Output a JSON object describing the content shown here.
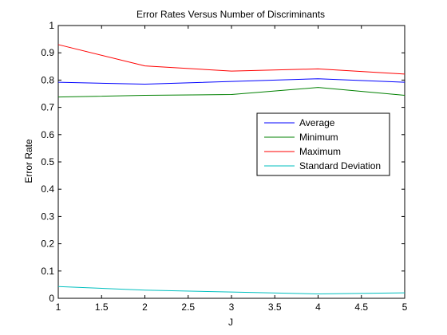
{
  "chart_data": {
    "type": "line",
    "title": "Error Rates Versus Number of Discriminants",
    "xlabel": "J",
    "ylabel": "Error Rate",
    "xlim": [
      1,
      5
    ],
    "ylim": [
      0,
      1
    ],
    "xticks": [
      1,
      1.5,
      2,
      2.5,
      3,
      3.5,
      4,
      4.5,
      5
    ],
    "xtick_labels": [
      "1",
      "1.5",
      "2",
      "2.5",
      "3",
      "3.5",
      "4",
      "4.5",
      "5"
    ],
    "yticks": [
      0,
      0.1,
      0.2,
      0.3,
      0.4,
      0.5,
      0.6,
      0.7,
      0.8,
      0.9,
      1
    ],
    "ytick_labels": [
      "0",
      "0.1",
      "0.2",
      "0.3",
      "0.4",
      "0.5",
      "0.6",
      "0.7",
      "0.8",
      "0.9",
      "1"
    ],
    "grid": false,
    "legend_position": "right, upper-middle",
    "x": [
      1,
      2,
      3,
      4,
      5
    ],
    "series": [
      {
        "name": "Average",
        "color": "#0000ff",
        "values": [
          0.792,
          0.785,
          0.795,
          0.805,
          0.792
        ]
      },
      {
        "name": "Minimum",
        "color": "#008000",
        "values": [
          0.738,
          0.744,
          0.747,
          0.773,
          0.744
        ]
      },
      {
        "name": "Maximum",
        "color": "#ff0000",
        "values": [
          0.93,
          0.852,
          0.833,
          0.841,
          0.822
        ]
      },
      {
        "name": "Standard Deviation",
        "color": "#00bfbf",
        "values": [
          0.043,
          0.03,
          0.023,
          0.016,
          0.02
        ]
      }
    ]
  }
}
